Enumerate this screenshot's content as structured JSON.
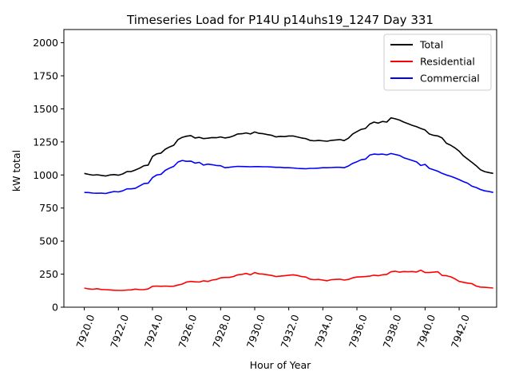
{
  "chart_data": {
    "type": "line",
    "title": "Timeseries Load for P14U p14uhs19_1247  Day 331",
    "xlabel": "Hour of Year",
    "ylabel": "kW total",
    "xlim": [
      7918.8,
      7944.2
    ],
    "ylim": [
      0,
      2100
    ],
    "xticks": [
      7920,
      7922,
      7924,
      7926,
      7928,
      7930,
      7932,
      7934,
      7936,
      7938,
      7940,
      7942
    ],
    "xtick_labels": [
      "7920.0",
      "7922.0",
      "7924.0",
      "7926.0",
      "7928.0",
      "7930.0",
      "7932.0",
      "7934.0",
      "7936.0",
      "7938.0",
      "7940.0",
      "7942.0"
    ],
    "yticks": [
      0,
      250,
      500,
      750,
      1000,
      1250,
      1500,
      1750,
      2000
    ],
    "ytick_labels": [
      "0",
      "250",
      "500",
      "750",
      "1000",
      "1250",
      "1500",
      "1750",
      "2000"
    ],
    "grid": false,
    "legend_position": "top-right",
    "x_start": 7920,
    "x_step": 0.25,
    "series": [
      {
        "name": "Total",
        "color": "#000000",
        "values": [
          1012,
          1005,
          999,
          1002,
          997,
          992,
          1000,
          1003,
          998,
          1008,
          1025,
          1026,
          1038,
          1052,
          1070,
          1075,
          1140,
          1160,
          1165,
          1195,
          1212,
          1225,
          1268,
          1285,
          1293,
          1298,
          1280,
          1285,
          1275,
          1278,
          1283,
          1282,
          1288,
          1280,
          1285,
          1295,
          1310,
          1312,
          1318,
          1310,
          1325,
          1315,
          1312,
          1305,
          1300,
          1288,
          1292,
          1290,
          1295,
          1295,
          1288,
          1280,
          1275,
          1262,
          1258,
          1262,
          1258,
          1255,
          1262,
          1265,
          1268,
          1260,
          1278,
          1310,
          1328,
          1345,
          1352,
          1385,
          1400,
          1392,
          1405,
          1400,
          1432,
          1425,
          1415,
          1400,
          1388,
          1375,
          1365,
          1352,
          1340,
          1310,
          1300,
          1295,
          1280,
          1240,
          1225,
          1205,
          1180,
          1145,
          1120,
          1095,
          1070,
          1040,
          1025,
          1018,
          1012
        ]
      },
      {
        "name": "Residential",
        "color": "#ff0000",
        "values": [
          145,
          138,
          136,
          140,
          134,
          133,
          131,
          128,
          127,
          127,
          130,
          131,
          137,
          133,
          133,
          138,
          158,
          160,
          158,
          160,
          158,
          159,
          168,
          175,
          190,
          195,
          192,
          190,
          200,
          195,
          205,
          210,
          222,
          225,
          225,
          232,
          245,
          248,
          255,
          245,
          262,
          252,
          250,
          245,
          240,
          232,
          235,
          238,
          242,
          245,
          240,
          232,
          228,
          212,
          208,
          210,
          205,
          200,
          208,
          210,
          212,
          205,
          210,
          222,
          228,
          230,
          232,
          235,
          242,
          238,
          245,
          248,
          268,
          272,
          265,
          270,
          268,
          270,
          266,
          280,
          262,
          262,
          265,
          268,
          240,
          238,
          230,
          215,
          195,
          188,
          182,
          178,
          160,
          152,
          150,
          148,
          145
        ]
      },
      {
        "name": "Commercial",
        "color": "#0000ff",
        "values": [
          868,
          867,
          863,
          862,
          863,
          860,
          868,
          875,
          872,
          880,
          895,
          895,
          900,
          918,
          935,
          938,
          980,
          1000,
          1005,
          1035,
          1052,
          1065,
          1098,
          1110,
          1103,
          1105,
          1090,
          1095,
          1075,
          1082,
          1078,
          1072,
          1070,
          1055,
          1058,
          1062,
          1065,
          1064,
          1063,
          1062,
          1063,
          1063,
          1062,
          1062,
          1060,
          1058,
          1058,
          1055,
          1055,
          1053,
          1050,
          1048,
          1047,
          1050,
          1050,
          1052,
          1055,
          1055,
          1056,
          1058,
          1058,
          1055,
          1068,
          1088,
          1100,
          1115,
          1120,
          1150,
          1158,
          1155,
          1158,
          1152,
          1162,
          1155,
          1148,
          1130,
          1120,
          1110,
          1099,
          1072,
          1080,
          1050,
          1040,
          1028,
          1012,
          1000,
          990,
          978,
          965,
          950,
          938,
          915,
          905,
          890,
          880,
          875,
          868
        ]
      }
    ]
  }
}
